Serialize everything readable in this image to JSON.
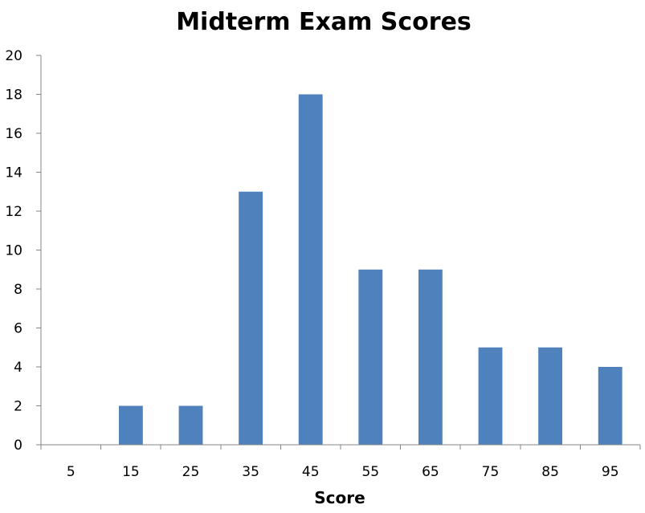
{
  "chart_data": {
    "type": "bar",
    "title": "Midterm Exam Scores",
    "xlabel": "Score",
    "ylabel": "",
    "categories": [
      "5",
      "15",
      "25",
      "35",
      "45",
      "55",
      "65",
      "75",
      "85",
      "95"
    ],
    "values": [
      0,
      2,
      2,
      13,
      18,
      9,
      9,
      5,
      5,
      4
    ],
    "ylim": [
      0,
      20
    ],
    "yticks": [
      "0",
      "2",
      "4",
      "6",
      "8",
      "10",
      "12",
      "14",
      "16",
      "18",
      "20"
    ],
    "grid": false,
    "legend": "none",
    "bar_color": "#4F81BD"
  }
}
